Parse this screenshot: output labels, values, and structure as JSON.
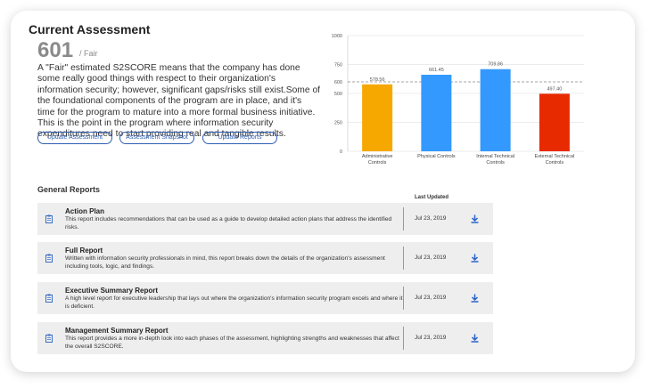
{
  "header": {
    "title": "Current Assessment",
    "score": 601,
    "rating": "/ Fair",
    "description": "A \"Fair\" estimated S2SCORE means that the company has done some really good things with respect to their organization's information security; however, significant gaps/risks still exist.Some of the foundational components of the program are in place, and it's time for the program to mature into a more formal business initiative. This is the point in the program where information security expenditures need to start providing real and tangible results."
  },
  "buttons": [
    "Update Assessment",
    "Assessment Snapshot",
    "Update Reports"
  ],
  "chart_data": {
    "type": "bar",
    "categories": [
      "Administrative Controls",
      "Physical Controls",
      "Internal Technical Controls",
      "External Technical Controls"
    ],
    "values": [
      578.56,
      661.45,
      709.86,
      497.4
    ],
    "value_labels": [
      "578.56",
      "661.45",
      "709.86",
      "497.40"
    ],
    "colors": [
      "#f7a800",
      "#3399ff",
      "#3399ff",
      "#e82a00"
    ],
    "ylim": [
      0,
      1000
    ],
    "yticks": [
      0,
      250,
      500,
      750,
      1000
    ],
    "threshold": 600,
    "grid": true
  },
  "reports": {
    "title": "General Reports",
    "column": "Last Updated",
    "rows": [
      {
        "title": "Action Plan",
        "description": "This report includes recommendations that can be used as a guide to develop detailed action plans that address the identified risks.",
        "date": "Jul 23, 2019"
      },
      {
        "title": "Full Report",
        "description": "Written with information security professionals in mind, this report breaks down the details of the organization's assessment including tools, logic, and findings.",
        "date": "Jul 23, 2019"
      },
      {
        "title": "Executive Summary Report",
        "description": "A high level report for executive leadership that lays out where the organization's information security program excels and where it is deficient.",
        "date": "Jul 23, 2019"
      },
      {
        "title": "Management Summary Report",
        "description": "This report provides a more in-depth look into each phases of the assessment, highlighting strengths and weaknesses that affect the overall S2SCORE.",
        "date": "Jul 23, 2019"
      }
    ]
  }
}
